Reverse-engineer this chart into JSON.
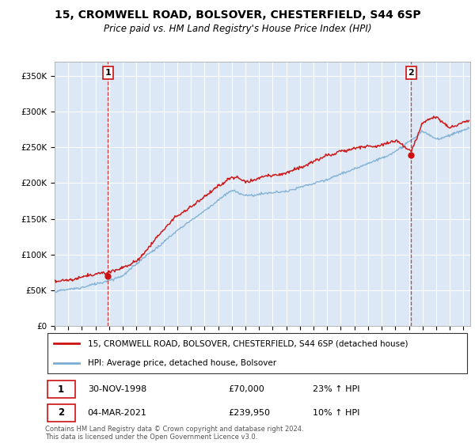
{
  "title": "15, CROMWELL ROAD, BOLSOVER, CHESTERFIELD, S44 6SP",
  "subtitle": "Price paid vs. HM Land Registry's House Price Index (HPI)",
  "legend_label_red": "15, CROMWELL ROAD, BOLSOVER, CHESTERFIELD, S44 6SP (detached house)",
  "legend_label_blue": "HPI: Average price, detached house, Bolsover",
  "transaction_1_date": "30-NOV-1998",
  "transaction_1_price": "£70,000",
  "transaction_1_hpi": "23% ↑ HPI",
  "transaction_1_x": 1998.92,
  "transaction_1_y": 70000,
  "transaction_2_date": "04-MAR-2021",
  "transaction_2_price": "£239,950",
  "transaction_2_hpi": "10% ↑ HPI",
  "transaction_2_x": 2021.17,
  "transaction_2_y": 239950,
  "ylabel_ticks": [
    0,
    50000,
    100000,
    150000,
    200000,
    250000,
    300000,
    350000
  ],
  "ylabel_labels": [
    "£0",
    "£50K",
    "£100K",
    "£150K",
    "£200K",
    "£250K",
    "£300K",
    "£350K"
  ],
  "ylim": [
    0,
    370000
  ],
  "xlim_start": 1995.0,
  "xlim_end": 2025.5,
  "footer": "Contains HM Land Registry data © Crown copyright and database right 2024.\nThis data is licensed under the Open Government Licence v3.0.",
  "background_color": "#ffffff",
  "plot_bg_color": "#dce8f5",
  "grid_color": "#ffffff",
  "red_color": "#cc1111",
  "blue_color": "#7aadd4",
  "vline_color": "#cc1111"
}
